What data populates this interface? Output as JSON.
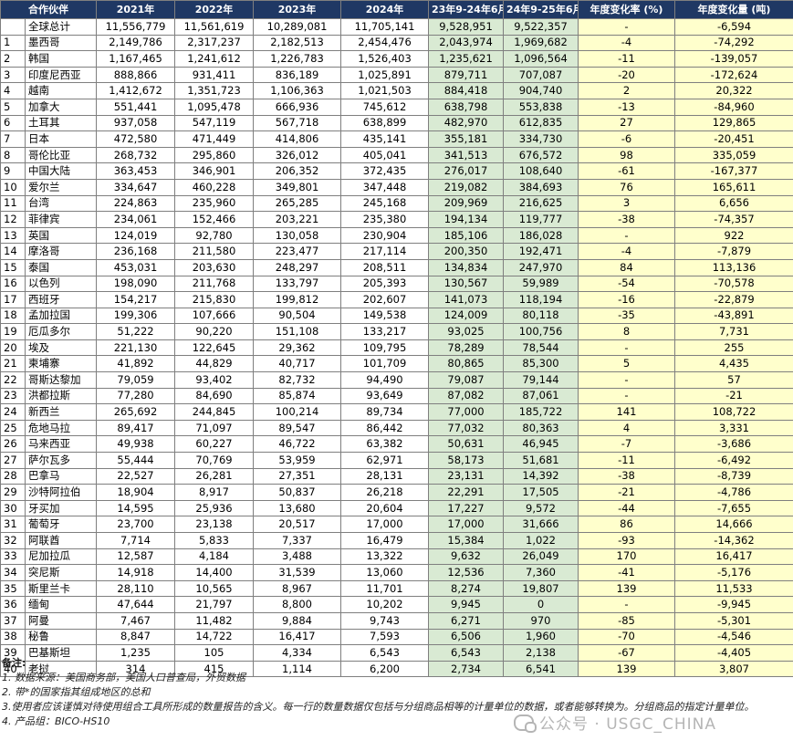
{
  "headers": [
    "合作伙伴",
    "2021年",
    "2022年",
    "2023年",
    "2024年",
    "23年9-24年6月",
    "24年9-25年6月",
    "年度变化率 (%)",
    "年度变化量 (吨)"
  ],
  "rows": [
    {
      "idx": "",
      "name": "全球总计",
      "y2021": "11,556,779",
      "y2022": "11,561,619",
      "y2023": "10,289,081",
      "y2024": "11,705,141",
      "p1": "9,528,951",
      "p2": "9,522,357",
      "pct": "-",
      "chg": "-6,594"
    },
    {
      "idx": "1",
      "name": "墨西哥",
      "y2021": "2,149,786",
      "y2022": "2,317,237",
      "y2023": "2,182,513",
      "y2024": "2,454,476",
      "p1": "2,043,974",
      "p2": "1,969,682",
      "pct": "-4",
      "chg": "-74,292"
    },
    {
      "idx": "2",
      "name": "韩国",
      "y2021": "1,167,465",
      "y2022": "1,241,612",
      "y2023": "1,226,783",
      "y2024": "1,526,403",
      "p1": "1,235,621",
      "p2": "1,096,564",
      "pct": "-11",
      "chg": "-139,057"
    },
    {
      "idx": "3",
      "name": "印度尼西亚",
      "y2021": "888,866",
      "y2022": "931,411",
      "y2023": "836,189",
      "y2024": "1,025,891",
      "p1": "879,711",
      "p2": "707,087",
      "pct": "-20",
      "chg": "-172,624"
    },
    {
      "idx": "4",
      "name": "越南",
      "y2021": "1,412,672",
      "y2022": "1,351,723",
      "y2023": "1,106,363",
      "y2024": "1,021,503",
      "p1": "884,418",
      "p2": "904,740",
      "pct": "2",
      "chg": "20,322"
    },
    {
      "idx": "5",
      "name": "加拿大",
      "y2021": "551,441",
      "y2022": "1,095,478",
      "y2023": "666,936",
      "y2024": "745,612",
      "p1": "638,798",
      "p2": "553,838",
      "pct": "-13",
      "chg": "-84,960"
    },
    {
      "idx": "6",
      "name": "土耳其",
      "y2021": "937,058",
      "y2022": "547,119",
      "y2023": "567,718",
      "y2024": "638,899",
      "p1": "482,970",
      "p2": "612,835",
      "pct": "27",
      "chg": "129,865"
    },
    {
      "idx": "7",
      "name": "日本",
      "y2021": "472,580",
      "y2022": "471,449",
      "y2023": "414,806",
      "y2024": "435,141",
      "p1": "355,181",
      "p2": "334,730",
      "pct": "-6",
      "chg": "-20,451"
    },
    {
      "idx": "8",
      "name": "哥伦比亚",
      "y2021": "268,732",
      "y2022": "295,860",
      "y2023": "326,012",
      "y2024": "405,041",
      "p1": "341,513",
      "p2": "676,572",
      "pct": "98",
      "chg": "335,059"
    },
    {
      "idx": "9",
      "name": "中国大陆",
      "y2021": "363,453",
      "y2022": "346,901",
      "y2023": "206,352",
      "y2024": "372,435",
      "p1": "276,017",
      "p2": "108,640",
      "pct": "-61",
      "chg": "-167,377"
    },
    {
      "idx": "10",
      "name": "爱尔兰",
      "y2021": "334,647",
      "y2022": "460,228",
      "y2023": "349,801",
      "y2024": "347,448",
      "p1": "219,082",
      "p2": "384,693",
      "pct": "76",
      "chg": "165,611"
    },
    {
      "idx": "11",
      "name": "台湾",
      "y2021": "224,863",
      "y2022": "235,960",
      "y2023": "265,285",
      "y2024": "245,168",
      "p1": "209,969",
      "p2": "216,625",
      "pct": "3",
      "chg": "6,656"
    },
    {
      "idx": "12",
      "name": "菲律宾",
      "y2021": "234,061",
      "y2022": "152,466",
      "y2023": "203,221",
      "y2024": "235,380",
      "p1": "194,134",
      "p2": "119,777",
      "pct": "-38",
      "chg": "-74,357"
    },
    {
      "idx": "13",
      "name": "英国",
      "y2021": "124,019",
      "y2022": "92,780",
      "y2023": "130,058",
      "y2024": "230,904",
      "p1": "185,106",
      "p2": "186,028",
      "pct": "-",
      "chg": "922"
    },
    {
      "idx": "14",
      "name": "摩洛哥",
      "y2021": "236,168",
      "y2022": "211,580",
      "y2023": "223,477",
      "y2024": "217,114",
      "p1": "200,350",
      "p2": "192,471",
      "pct": "-4",
      "chg": "-7,879"
    },
    {
      "idx": "15",
      "name": "泰国",
      "y2021": "453,031",
      "y2022": "203,630",
      "y2023": "248,297",
      "y2024": "208,511",
      "p1": "134,834",
      "p2": "247,970",
      "pct": "84",
      "chg": "113,136"
    },
    {
      "idx": "16",
      "name": "以色列",
      "y2021": "198,090",
      "y2022": "211,768",
      "y2023": "133,797",
      "y2024": "205,393",
      "p1": "130,567",
      "p2": "59,989",
      "pct": "-54",
      "chg": "-70,578"
    },
    {
      "idx": "17",
      "name": "西班牙",
      "y2021": "154,217",
      "y2022": "215,830",
      "y2023": "199,812",
      "y2024": "202,607",
      "p1": "141,073",
      "p2": "118,194",
      "pct": "-16",
      "chg": "-22,879"
    },
    {
      "idx": "18",
      "name": "孟加拉国",
      "y2021": "199,306",
      "y2022": "107,666",
      "y2023": "90,504",
      "y2024": "149,538",
      "p1": "124,009",
      "p2": "80,118",
      "pct": "-35",
      "chg": "-43,891"
    },
    {
      "idx": "19",
      "name": "厄瓜多尔",
      "y2021": "51,222",
      "y2022": "90,220",
      "y2023": "151,108",
      "y2024": "133,217",
      "p1": "93,025",
      "p2": "100,756",
      "pct": "8",
      "chg": "7,731"
    },
    {
      "idx": "20",
      "name": "埃及",
      "y2021": "221,130",
      "y2022": "122,645",
      "y2023": "29,362",
      "y2024": "109,795",
      "p1": "78,289",
      "p2": "78,544",
      "pct": "-",
      "chg": "255"
    },
    {
      "idx": "21",
      "name": "柬埔寨",
      "y2021": "41,892",
      "y2022": "44,829",
      "y2023": "40,717",
      "y2024": "101,709",
      "p1": "80,865",
      "p2": "85,300",
      "pct": "5",
      "chg": "4,435"
    },
    {
      "idx": "22",
      "name": "哥斯达黎加",
      "y2021": "79,059",
      "y2022": "93,402",
      "y2023": "82,732",
      "y2024": "94,490",
      "p1": "79,087",
      "p2": "79,144",
      "pct": "-",
      "chg": "57"
    },
    {
      "idx": "23",
      "name": "洪都拉斯",
      "y2021": "77,280",
      "y2022": "84,690",
      "y2023": "85,874",
      "y2024": "93,649",
      "p1": "87,082",
      "p2": "87,061",
      "pct": "-",
      "chg": "-21"
    },
    {
      "idx": "24",
      "name": "新西兰",
      "y2021": "265,692",
      "y2022": "244,845",
      "y2023": "100,214",
      "y2024": "89,734",
      "p1": "77,000",
      "p2": "185,722",
      "pct": "141",
      "chg": "108,722"
    },
    {
      "idx": "25",
      "name": "危地马拉",
      "y2021": "89,417",
      "y2022": "71,097",
      "y2023": "89,547",
      "y2024": "86,442",
      "p1": "77,032",
      "p2": "80,363",
      "pct": "4",
      "chg": "3,331"
    },
    {
      "idx": "26",
      "name": "马来西亚",
      "y2021": "49,938",
      "y2022": "60,227",
      "y2023": "46,722",
      "y2024": "63,382",
      "p1": "50,631",
      "p2": "46,945",
      "pct": "-7",
      "chg": "-3,686"
    },
    {
      "idx": "27",
      "name": "萨尔瓦多",
      "y2021": "55,444",
      "y2022": "70,769",
      "y2023": "53,959",
      "y2024": "62,971",
      "p1": "58,173",
      "p2": "51,681",
      "pct": "-11",
      "chg": "-6,492"
    },
    {
      "idx": "28",
      "name": "巴拿马",
      "y2021": "22,527",
      "y2022": "26,281",
      "y2023": "27,351",
      "y2024": "28,131",
      "p1": "23,131",
      "p2": "14,392",
      "pct": "-38",
      "chg": "-8,739"
    },
    {
      "idx": "29",
      "name": "沙特阿拉伯",
      "y2021": "18,904",
      "y2022": "8,917",
      "y2023": "50,837",
      "y2024": "26,218",
      "p1": "22,291",
      "p2": "17,505",
      "pct": "-21",
      "chg": "-4,786"
    },
    {
      "idx": "30",
      "name": "牙买加",
      "y2021": "14,595",
      "y2022": "25,936",
      "y2023": "13,680",
      "y2024": "20,604",
      "p1": "17,227",
      "p2": "9,572",
      "pct": "-44",
      "chg": "-7,655"
    },
    {
      "idx": "31",
      "name": "葡萄牙",
      "y2021": "23,700",
      "y2022": "23,138",
      "y2023": "20,517",
      "y2024": "17,000",
      "p1": "17,000",
      "p2": "31,666",
      "pct": "86",
      "chg": "14,666"
    },
    {
      "idx": "32",
      "name": "阿联酋",
      "y2021": "7,714",
      "y2022": "5,833",
      "y2023": "7,337",
      "y2024": "16,479",
      "p1": "15,384",
      "p2": "1,022",
      "pct": "-93",
      "chg": "-14,362"
    },
    {
      "idx": "33",
      "name": "尼加拉瓜",
      "y2021": "12,587",
      "y2022": "4,184",
      "y2023": "3,488",
      "y2024": "13,322",
      "p1": "9,632",
      "p2": "26,049",
      "pct": "170",
      "chg": "16,417"
    },
    {
      "idx": "34",
      "name": "突尼斯",
      "y2021": "14,918",
      "y2022": "14,400",
      "y2023": "31,539",
      "y2024": "13,060",
      "p1": "12,536",
      "p2": "7,360",
      "pct": "-41",
      "chg": "-5,176"
    },
    {
      "idx": "35",
      "name": "斯里兰卡",
      "y2021": "28,110",
      "y2022": "10,565",
      "y2023": "8,967",
      "y2024": "11,701",
      "p1": "8,274",
      "p2": "19,807",
      "pct": "139",
      "chg": "11,533"
    },
    {
      "idx": "36",
      "name": "缅甸",
      "y2021": "47,644",
      "y2022": "21,797",
      "y2023": "8,800",
      "y2024": "10,202",
      "p1": "9,945",
      "p2": "0",
      "pct": "-",
      "chg": "-9,945"
    },
    {
      "idx": "37",
      "name": "阿曼",
      "y2021": "7,467",
      "y2022": "11,482",
      "y2023": "9,884",
      "y2024": "9,743",
      "p1": "6,271",
      "p2": "970",
      "pct": "-85",
      "chg": "-5,301"
    },
    {
      "idx": "38",
      "name": "秘鲁",
      "y2021": "8,847",
      "y2022": "14,722",
      "y2023": "16,417",
      "y2024": "7,593",
      "p1": "6,506",
      "p2": "1,960",
      "pct": "-70",
      "chg": "-4,546"
    },
    {
      "idx": "39",
      "name": "巴基斯坦",
      "y2021": "1,235",
      "y2022": "105",
      "y2023": "4,334",
      "y2024": "6,543",
      "p1": "6,543",
      "p2": "2,138",
      "pct": "-67",
      "chg": "-4,405"
    },
    {
      "idx": "40",
      "name": "老挝",
      "y2021": "314",
      "y2022": "415",
      "y2023": "1,114",
      "y2024": "6,200",
      "p1": "2,734",
      "p2": "6,541",
      "pct": "139",
      "chg": "3,807"
    }
  ],
  "notes": {
    "title": "备注:",
    "line1": "1. 数据来源：美国商务部，美国人口普查局，外贸数据",
    "line2": "2. 带*的国家指其组成地区的总和",
    "line3": "3.使用者应该谨慎对待使用组合工具所形成的数量报告的含义。每一行的数量数据仅包括与分组商品相等的计量单位的数据，或者能够转换为。分组商品的指定计量单位。",
    "line4": "4. 产品组：BICO-HS10"
  },
  "watermark": "公众号 · USGC_CHINA",
  "colors": {
    "header_bg": "#1f3864",
    "period_bg": "#d9ead3",
    "change_bg": "#ffffcc"
  }
}
